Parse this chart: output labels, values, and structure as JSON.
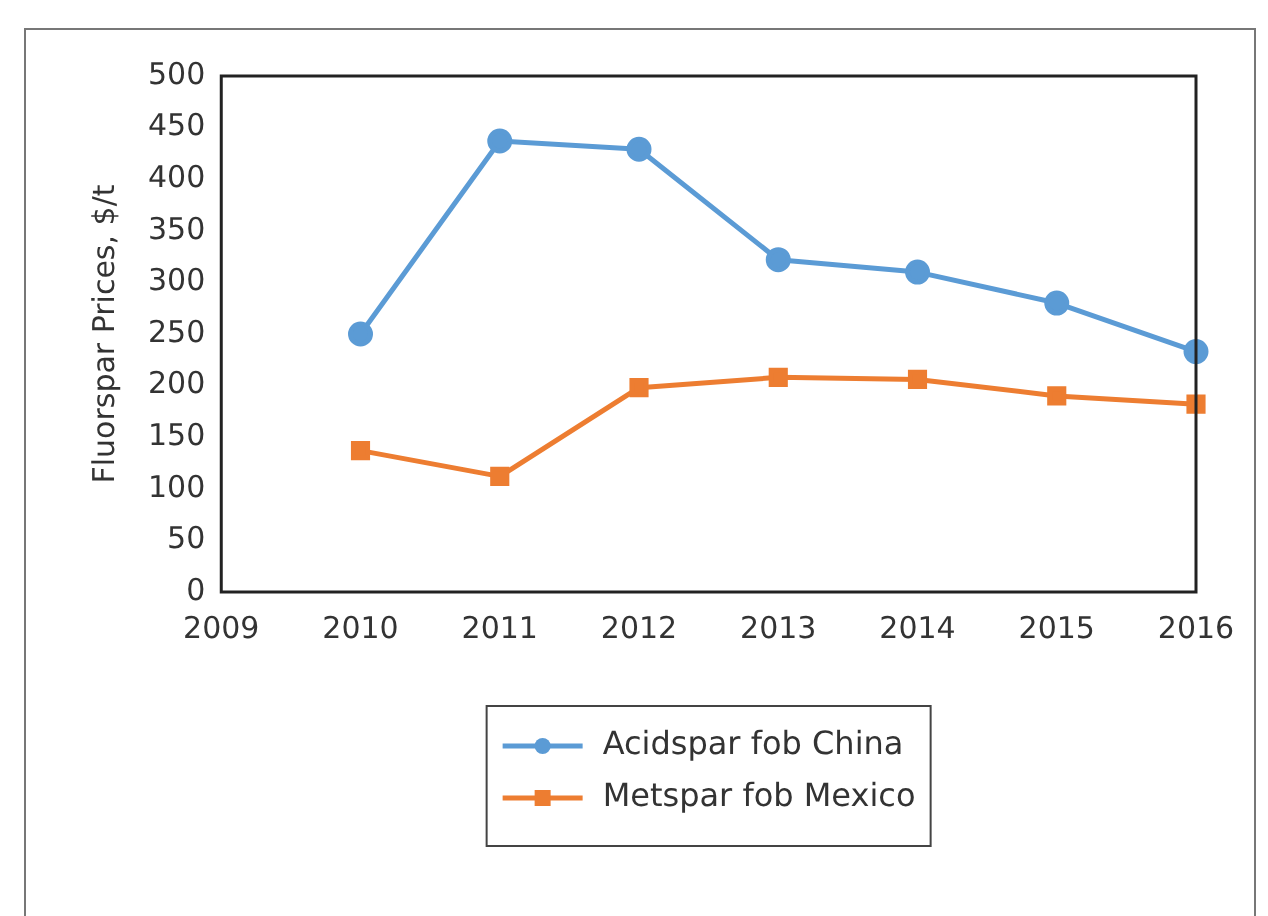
{
  "chart_data": {
    "type": "line",
    "ylabel": "Fluorspar Prices, $/t",
    "x": [
      2010,
      2011,
      2012,
      2013,
      2014,
      2015,
      2016
    ],
    "series": [
      {
        "name": "Acidspar fob China",
        "color": "#5b9bd5",
        "marker": "circle",
        "values": [
          250,
          437,
          429,
          322,
          310,
          280,
          233
        ]
      },
      {
        "name": "Metspar fob Mexico",
        "color": "#ed7d31",
        "marker": "square",
        "values": [
          137,
          112,
          198,
          208,
          206,
          190,
          182
        ]
      }
    ],
    "xlim": [
      2009,
      2016
    ],
    "xticks": [
      2009,
      2010,
      2011,
      2012,
      2013,
      2014,
      2015,
      2016
    ],
    "ylim": [
      0,
      500
    ],
    "yticks": [
      0,
      50,
      100,
      150,
      200,
      250,
      300,
      350,
      400,
      450,
      500
    ],
    "grid": false,
    "legend": "bottom"
  }
}
